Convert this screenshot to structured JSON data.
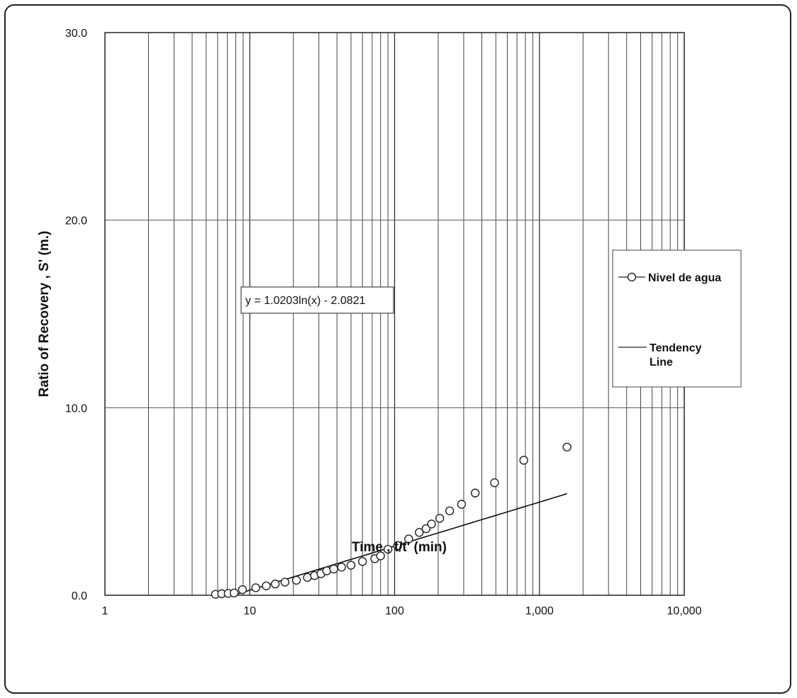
{
  "chart_data": {
    "type": "scatter",
    "x_scale": "log",
    "xlabel": "Time , t/t' (min)",
    "ylabel": "Ratio of Recovery , S' (m.)",
    "xlim": [
      1,
      10000
    ],
    "ylim": [
      0,
      30
    ],
    "x_ticks": [
      "1",
      "10",
      "100",
      "1,000",
      "10,000"
    ],
    "y_ticks": [
      "0.0",
      "10.0",
      "20.0",
      "30.0"
    ],
    "grid": true,
    "legend_position": "right",
    "series": [
      {
        "name": "Nivel de agua",
        "marker": "open-circle",
        "x": [
          5.8,
          6.4,
          7.1,
          7.8,
          8.9,
          11,
          13,
          15,
          17.5,
          21,
          25,
          28,
          31,
          34,
          38,
          43,
          50,
          60,
          73,
          80,
          90,
          105,
          125,
          148,
          165,
          180,
          205,
          240,
          290,
          360,
          490,
          780,
          1550
        ],
        "y": [
          0.05,
          0.08,
          0.1,
          0.12,
          0.3,
          0.4,
          0.5,
          0.6,
          0.7,
          0.8,
          0.95,
          1.05,
          1.15,
          1.3,
          1.4,
          1.5,
          1.6,
          1.8,
          1.95,
          2.1,
          2.45,
          2.65,
          3.0,
          3.35,
          3.55,
          3.8,
          4.1,
          4.5,
          4.85,
          5.45,
          6.0,
          7.2,
          7.9
        ]
      },
      {
        "name": "Tendency Line",
        "line_style": "solid",
        "equation": "y = 1.0203ln(x) - 2.0821",
        "coef_a": 1.0203,
        "coef_b": -2.0821,
        "x_range": [
          7.7,
          1550
        ]
      }
    ]
  }
}
